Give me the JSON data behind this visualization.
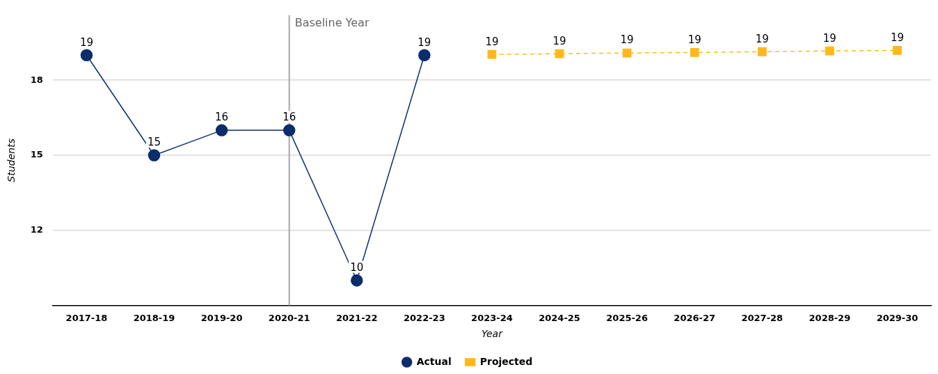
{
  "chart_data": {
    "type": "line",
    "xlabel": "Year",
    "ylabel": "Students",
    "categories": [
      "2017-18",
      "2018-19",
      "2019-20",
      "2020-21",
      "2021-22",
      "2022-23",
      "2023-24",
      "2024-25",
      "2025-26",
      "2026-27",
      "2027-28",
      "2028-29",
      "2029-30"
    ],
    "series": [
      {
        "name": "Actual",
        "color": "#0b2d6b",
        "marker": "circle",
        "line_style": "solid",
        "values": [
          19,
          15,
          16,
          16,
          10,
          19,
          null,
          null,
          null,
          null,
          null,
          null,
          null
        ],
        "value_labels": [
          "19",
          "15",
          "16",
          "16",
          "10",
          "19",
          null,
          null,
          null,
          null,
          null,
          null,
          null
        ]
      },
      {
        "name": "Projected",
        "color": "#ffb81c",
        "marker": "square",
        "line_style": "dashed",
        "values": [
          null,
          null,
          null,
          null,
          null,
          null,
          19.03,
          19.06,
          19.09,
          19.11,
          19.14,
          19.17,
          19.19
        ],
        "value_labels": [
          null,
          null,
          null,
          null,
          null,
          null,
          "19",
          "19",
          "19",
          "19",
          "19",
          "19",
          "19"
        ]
      }
    ],
    "ylim": [
      9,
      20.6
    ],
    "yticks": [
      12,
      15,
      18
    ],
    "grid": "y",
    "legend": "bottom",
    "ref_lines": [
      {
        "axis": "x",
        "value": "2020-21",
        "label": "Baseline Year",
        "color": "#a6a6a6"
      }
    ]
  }
}
